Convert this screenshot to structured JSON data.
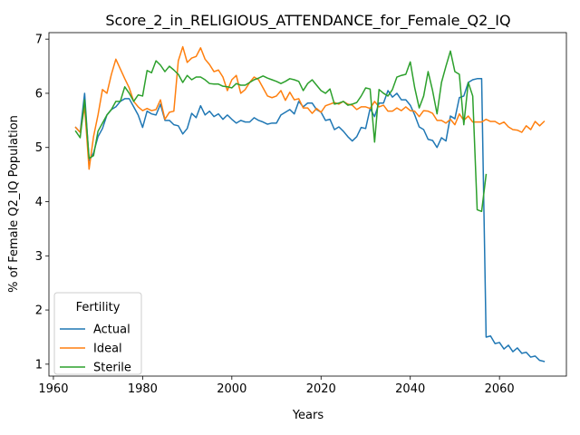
{
  "chart_data": {
    "type": "line",
    "title": "Score_2_in_RELIGIOUS_ATTENDANCE_for_Female_Q2_IQ",
    "xlabel": "Years",
    "ylabel": "% of Female Q2_IQ Population",
    "xlim": [
      1959,
      2075
    ],
    "ylim": [
      0.78,
      7.12
    ],
    "xticks": [
      1960,
      1980,
      2000,
      2020,
      2040,
      2060
    ],
    "yticks": [
      1,
      2,
      3,
      4,
      5,
      6,
      7
    ],
    "grid": false,
    "legend": {
      "title": "Fertility",
      "placement": "lower-left"
    },
    "series": [
      {
        "name": "Actual",
        "color": "#1f77b4",
        "points": [
          [
            1965,
            5.37
          ],
          [
            1966,
            5.28
          ],
          [
            1967,
            6.0
          ],
          [
            1968,
            4.75
          ],
          [
            1969,
            4.9
          ],
          [
            1970,
            5.2
          ],
          [
            1971,
            5.35
          ],
          [
            1972,
            5.6
          ],
          [
            1973,
            5.7
          ],
          [
            1974,
            5.75
          ],
          [
            1975,
            5.85
          ],
          [
            1976,
            5.9
          ],
          [
            1977,
            5.9
          ],
          [
            1978,
            5.75
          ],
          [
            1979,
            5.6
          ],
          [
            1980,
            5.37
          ],
          [
            1981,
            5.67
          ],
          [
            1982,
            5.62
          ],
          [
            1983,
            5.6
          ],
          [
            1984,
            5.8
          ],
          [
            1985,
            5.5
          ],
          [
            1986,
            5.5
          ],
          [
            1987,
            5.42
          ],
          [
            1988,
            5.4
          ],
          [
            1989,
            5.25
          ],
          [
            1990,
            5.35
          ],
          [
            1991,
            5.63
          ],
          [
            1992,
            5.55
          ],
          [
            1993,
            5.77
          ],
          [
            1994,
            5.6
          ],
          [
            1995,
            5.67
          ],
          [
            1996,
            5.57
          ],
          [
            1997,
            5.62
          ],
          [
            1998,
            5.52
          ],
          [
            1999,
            5.6
          ],
          [
            2000,
            5.52
          ],
          [
            2001,
            5.45
          ],
          [
            2002,
            5.5
          ],
          [
            2003,
            5.47
          ],
          [
            2004,
            5.47
          ],
          [
            2005,
            5.55
          ],
          [
            2006,
            5.5
          ],
          [
            2007,
            5.47
          ],
          [
            2008,
            5.43
          ],
          [
            2009,
            5.45
          ],
          [
            2010,
            5.45
          ],
          [
            2011,
            5.6
          ],
          [
            2012,
            5.65
          ],
          [
            2013,
            5.7
          ],
          [
            2014,
            5.62
          ],
          [
            2015,
            5.85
          ],
          [
            2016,
            5.75
          ],
          [
            2017,
            5.82
          ],
          [
            2018,
            5.82
          ],
          [
            2019,
            5.7
          ],
          [
            2020,
            5.65
          ],
          [
            2021,
            5.5
          ],
          [
            2022,
            5.52
          ],
          [
            2023,
            5.33
          ],
          [
            2024,
            5.38
          ],
          [
            2025,
            5.3
          ],
          [
            2026,
            5.2
          ],
          [
            2027,
            5.12
          ],
          [
            2028,
            5.2
          ],
          [
            2029,
            5.37
          ],
          [
            2030,
            5.35
          ],
          [
            2031,
            5.72
          ],
          [
            2032,
            5.57
          ],
          [
            2033,
            5.82
          ],
          [
            2034,
            5.82
          ],
          [
            2035,
            6.05
          ],
          [
            2036,
            5.93
          ],
          [
            2037,
            6.0
          ],
          [
            2038,
            5.88
          ],
          [
            2039,
            5.88
          ],
          [
            2040,
            5.78
          ],
          [
            2041,
            5.6
          ],
          [
            2042,
            5.38
          ],
          [
            2043,
            5.33
          ],
          [
            2044,
            5.15
          ],
          [
            2045,
            5.13
          ],
          [
            2046,
            5.0
          ],
          [
            2047,
            5.18
          ],
          [
            2048,
            5.12
          ],
          [
            2049,
            5.58
          ],
          [
            2050,
            5.53
          ],
          [
            2051,
            5.92
          ],
          [
            2052,
            5.95
          ],
          [
            2053,
            6.2
          ],
          [
            2054,
            6.25
          ],
          [
            2055,
            6.27
          ],
          [
            2056,
            6.27
          ],
          [
            2057,
            1.5
          ],
          [
            2058,
            1.52
          ],
          [
            2059,
            1.38
          ],
          [
            2060,
            1.4
          ],
          [
            2061,
            1.28
          ],
          [
            2062,
            1.35
          ],
          [
            2063,
            1.23
          ],
          [
            2064,
            1.3
          ],
          [
            2065,
            1.2
          ],
          [
            2066,
            1.22
          ],
          [
            2067,
            1.13
          ],
          [
            2068,
            1.15
          ],
          [
            2069,
            1.07
          ],
          [
            2070,
            1.05
          ]
        ]
      },
      {
        "name": "Ideal",
        "color": "#ff7f0e",
        "points": [
          [
            1965,
            5.37
          ],
          [
            1966,
            5.28
          ],
          [
            1967,
            5.75
          ],
          [
            1968,
            4.6
          ],
          [
            1969,
            5.2
          ],
          [
            1970,
            5.6
          ],
          [
            1971,
            6.07
          ],
          [
            1972,
            6.0
          ],
          [
            1973,
            6.35
          ],
          [
            1974,
            6.63
          ],
          [
            1975,
            6.45
          ],
          [
            1976,
            6.27
          ],
          [
            1977,
            6.1
          ],
          [
            1978,
            5.85
          ],
          [
            1979,
            5.75
          ],
          [
            1980,
            5.68
          ],
          [
            1981,
            5.72
          ],
          [
            1982,
            5.68
          ],
          [
            1983,
            5.7
          ],
          [
            1984,
            5.88
          ],
          [
            1985,
            5.52
          ],
          [
            1986,
            5.65
          ],
          [
            1987,
            5.67
          ],
          [
            1988,
            6.6
          ],
          [
            1989,
            6.86
          ],
          [
            1990,
            6.57
          ],
          [
            1991,
            6.65
          ],
          [
            1992,
            6.68
          ],
          [
            1993,
            6.84
          ],
          [
            1994,
            6.63
          ],
          [
            1995,
            6.53
          ],
          [
            1996,
            6.4
          ],
          [
            1997,
            6.43
          ],
          [
            1998,
            6.3
          ],
          [
            1999,
            6.05
          ],
          [
            2000,
            6.25
          ],
          [
            2001,
            6.33
          ],
          [
            2002,
            6.0
          ],
          [
            2003,
            6.07
          ],
          [
            2004,
            6.2
          ],
          [
            2005,
            6.3
          ],
          [
            2006,
            6.25
          ],
          [
            2007,
            6.1
          ],
          [
            2008,
            5.95
          ],
          [
            2009,
            5.92
          ],
          [
            2010,
            5.95
          ],
          [
            2011,
            6.05
          ],
          [
            2012,
            5.87
          ],
          [
            2013,
            6.02
          ],
          [
            2014,
            5.88
          ],
          [
            2015,
            5.9
          ],
          [
            2016,
            5.73
          ],
          [
            2017,
            5.73
          ],
          [
            2018,
            5.63
          ],
          [
            2019,
            5.72
          ],
          [
            2020,
            5.65
          ],
          [
            2021,
            5.77
          ],
          [
            2022,
            5.8
          ],
          [
            2023,
            5.83
          ],
          [
            2024,
            5.8
          ],
          [
            2025,
            5.85
          ],
          [
            2026,
            5.8
          ],
          [
            2027,
            5.78
          ],
          [
            2028,
            5.7
          ],
          [
            2029,
            5.75
          ],
          [
            2030,
            5.75
          ],
          [
            2031,
            5.72
          ],
          [
            2032,
            5.85
          ],
          [
            2033,
            5.75
          ],
          [
            2034,
            5.78
          ],
          [
            2035,
            5.67
          ],
          [
            2036,
            5.67
          ],
          [
            2037,
            5.73
          ],
          [
            2038,
            5.68
          ],
          [
            2039,
            5.75
          ],
          [
            2040,
            5.68
          ],
          [
            2041,
            5.67
          ],
          [
            2042,
            5.57
          ],
          [
            2043,
            5.68
          ],
          [
            2044,
            5.67
          ],
          [
            2045,
            5.63
          ],
          [
            2046,
            5.5
          ],
          [
            2047,
            5.5
          ],
          [
            2048,
            5.45
          ],
          [
            2049,
            5.52
          ],
          [
            2050,
            5.42
          ],
          [
            2051,
            5.62
          ],
          [
            2052,
            5.5
          ],
          [
            2053,
            5.58
          ],
          [
            2054,
            5.47
          ],
          [
            2055,
            5.47
          ],
          [
            2056,
            5.47
          ],
          [
            2057,
            5.52
          ],
          [
            2058,
            5.48
          ],
          [
            2059,
            5.48
          ],
          [
            2060,
            5.43
          ],
          [
            2061,
            5.47
          ],
          [
            2062,
            5.38
          ],
          [
            2063,
            5.33
          ],
          [
            2064,
            5.32
          ],
          [
            2065,
            5.28
          ],
          [
            2066,
            5.4
          ],
          [
            2067,
            5.33
          ],
          [
            2068,
            5.48
          ],
          [
            2069,
            5.4
          ],
          [
            2070,
            5.48
          ]
        ]
      },
      {
        "name": "Sterile",
        "color": "#2ca02c",
        "points": [
          [
            1965,
            5.3
          ],
          [
            1966,
            5.18
          ],
          [
            1967,
            5.88
          ],
          [
            1968,
            4.8
          ],
          [
            1969,
            4.85
          ],
          [
            1970,
            5.3
          ],
          [
            1971,
            5.45
          ],
          [
            1972,
            5.6
          ],
          [
            1973,
            5.7
          ],
          [
            1974,
            5.85
          ],
          [
            1975,
            5.85
          ],
          [
            1976,
            6.12
          ],
          [
            1977,
            6.0
          ],
          [
            1978,
            5.85
          ],
          [
            1979,
            5.97
          ],
          [
            1980,
            5.95
          ],
          [
            1981,
            6.42
          ],
          [
            1982,
            6.38
          ],
          [
            1983,
            6.6
          ],
          [
            1984,
            6.52
          ],
          [
            1985,
            6.4
          ],
          [
            1986,
            6.5
          ],
          [
            1987,
            6.43
          ],
          [
            1988,
            6.35
          ],
          [
            1989,
            6.2
          ],
          [
            1990,
            6.33
          ],
          [
            1991,
            6.25
          ],
          [
            1992,
            6.3
          ],
          [
            1993,
            6.3
          ],
          [
            1994,
            6.25
          ],
          [
            1995,
            6.18
          ],
          [
            1996,
            6.17
          ],
          [
            1997,
            6.17
          ],
          [
            1998,
            6.13
          ],
          [
            1999,
            6.12
          ],
          [
            2000,
            6.1
          ],
          [
            2001,
            6.18
          ],
          [
            2002,
            6.15
          ],
          [
            2003,
            6.15
          ],
          [
            2004,
            6.2
          ],
          [
            2005,
            6.25
          ],
          [
            2006,
            6.28
          ],
          [
            2007,
            6.32
          ],
          [
            2008,
            6.28
          ],
          [
            2009,
            6.25
          ],
          [
            2010,
            6.22
          ],
          [
            2011,
            6.18
          ],
          [
            2012,
            6.22
          ],
          [
            2013,
            6.27
          ],
          [
            2014,
            6.25
          ],
          [
            2015,
            6.22
          ],
          [
            2016,
            6.05
          ],
          [
            2017,
            6.18
          ],
          [
            2018,
            6.25
          ],
          [
            2019,
            6.15
          ],
          [
            2020,
            6.05
          ],
          [
            2021,
            6.0
          ],
          [
            2022,
            6.08
          ],
          [
            2023,
            5.8
          ],
          [
            2024,
            5.82
          ],
          [
            2025,
            5.85
          ],
          [
            2026,
            5.78
          ],
          [
            2027,
            5.8
          ],
          [
            2028,
            5.83
          ],
          [
            2029,
            5.95
          ],
          [
            2030,
            6.1
          ],
          [
            2031,
            6.08
          ],
          [
            2032,
            5.1
          ],
          [
            2033,
            6.07
          ],
          [
            2034,
            6.0
          ],
          [
            2035,
            5.95
          ],
          [
            2036,
            6.07
          ],
          [
            2037,
            6.3
          ],
          [
            2038,
            6.33
          ],
          [
            2039,
            6.35
          ],
          [
            2040,
            6.58
          ],
          [
            2041,
            6.1
          ],
          [
            2042,
            5.73
          ],
          [
            2043,
            5.95
          ],
          [
            2044,
            6.4
          ],
          [
            2045,
            6.05
          ],
          [
            2046,
            5.62
          ],
          [
            2047,
            6.2
          ],
          [
            2048,
            6.5
          ],
          [
            2049,
            6.78
          ],
          [
            2050,
            6.4
          ],
          [
            2051,
            6.35
          ],
          [
            2052,
            5.42
          ],
          [
            2053,
            6.2
          ],
          [
            2054,
            5.95
          ],
          [
            2055,
            3.85
          ],
          [
            2056,
            3.82
          ],
          [
            2057,
            4.5
          ]
        ]
      }
    ]
  }
}
